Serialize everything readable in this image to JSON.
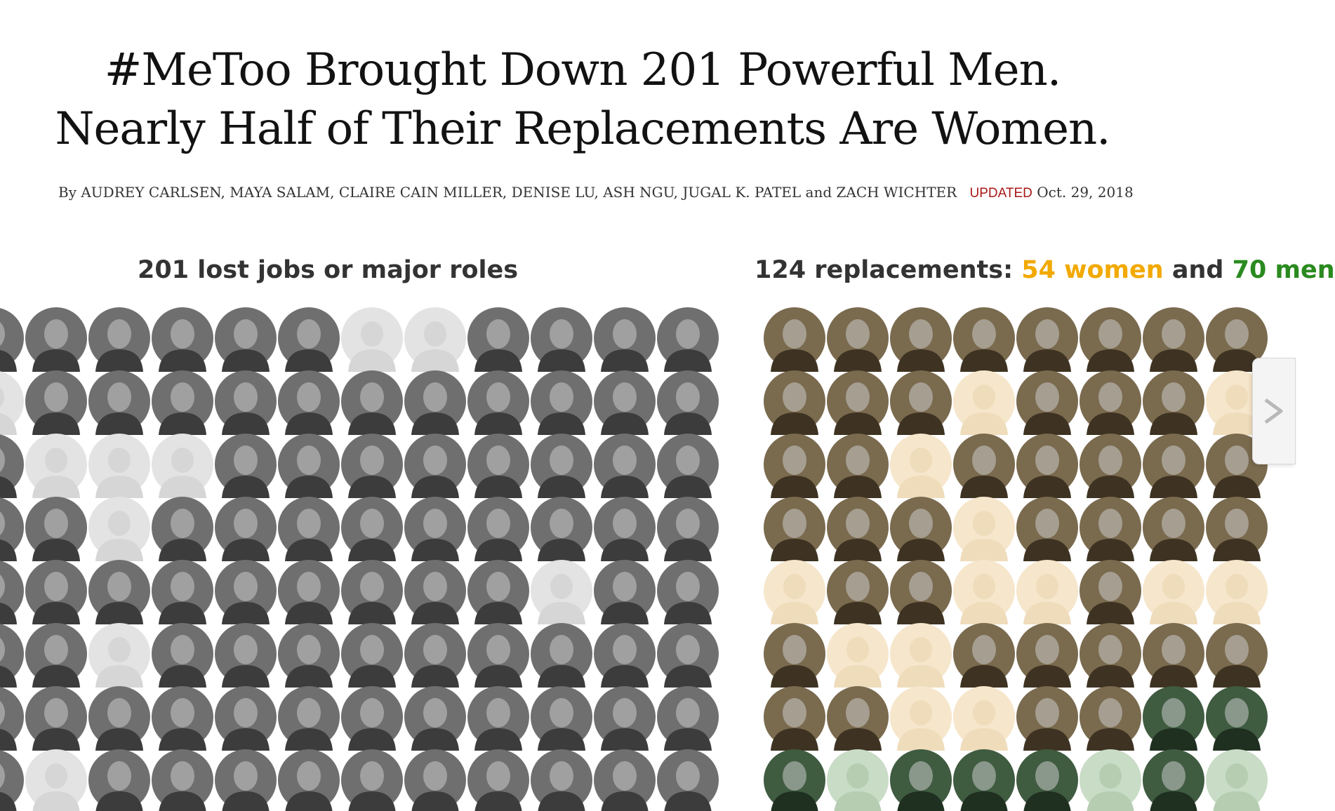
{
  "headline": {
    "line1": "#MeToo Brought Down 201 Powerful Men.",
    "line2": "Nearly Half of Their Replacements Are Women."
  },
  "byline": {
    "authors": "By AUDREY CARLSEN, MAYA SALAM, CLAIRE CAIN MILLER, DENISE LU, ASH NGU, JUGAL K. PATEL and ZACH WICHTER",
    "updated_label": "UPDATED",
    "date": "Oct. 29, 2018"
  },
  "lost_panel": {
    "title": "201 lost jobs or major roles",
    "rows": [
      "PPPPPPGGPPPP",
      "GPPPPPPPPPPP",
      "PGGGPPPPPPPP",
      "PPGPPPPPPPPP",
      "PPPPPPPPPGPP",
      "PPGPPPPPPPPP",
      "PPPPPPPPPPPP",
      "PGPPPPPPPPPP"
    ]
  },
  "replacements_panel": {
    "title_prefix": "124 replacements: ",
    "women_label": "54 women",
    "and_label": " and ",
    "men_label": "70 men",
    "rows": [
      "WWWWWWWW",
      "WWWwWWWw",
      "WWwWWWWW",
      "WWWwWWWW",
      "wWWwwWww",
      "WwwWWWWW",
      "WWwwWWMM",
      "MmMMMmMm"
    ]
  },
  "colors": {
    "photo_gray": "#6f6f6f",
    "placeholder_gray": "#e3e3e3",
    "women_photo": "#7a6a4e",
    "women_placeholder": "#f6e6cb",
    "men_photo": "#3f5b40",
    "men_placeholder": "#c9dcc6",
    "women_text": "#f2a900",
    "men_text": "#2a8a1f",
    "updated": "#a81817"
  },
  "icons": {
    "avatar": "person-silhouette-icon",
    "next": "chevron-right-icon"
  }
}
